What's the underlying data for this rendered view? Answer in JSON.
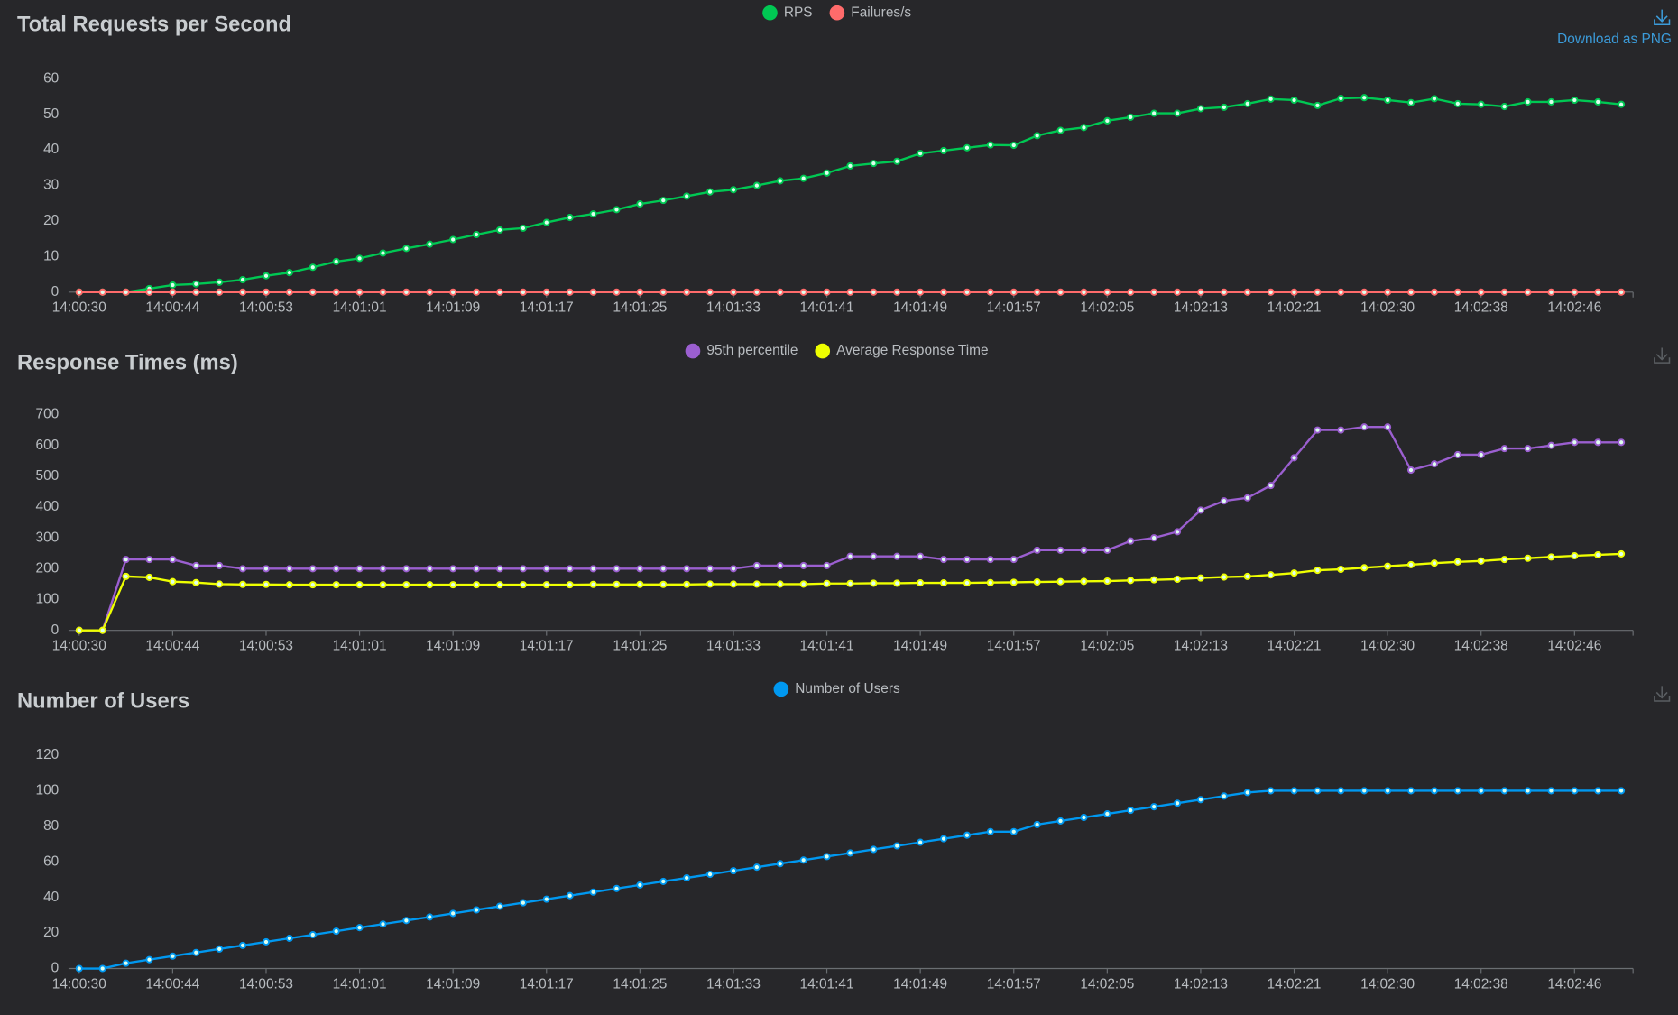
{
  "download_label": "Download as PNG",
  "chart_data": [
    {
      "type": "line",
      "title": "Total Requests per Second",
      "categories": [
        "14:00:30",
        null,
        null,
        null,
        "14:00:44",
        null,
        null,
        null,
        "14:00:53",
        null,
        null,
        null,
        "14:01:01",
        null,
        null,
        null,
        "14:01:09",
        null,
        null,
        null,
        "14:01:17",
        null,
        null,
        null,
        "14:01:25",
        null,
        null,
        null,
        "14:01:33",
        null,
        null,
        null,
        "14:01:41",
        null,
        null,
        null,
        "14:01:49",
        null,
        null,
        null,
        "14:01:57",
        null,
        null,
        null,
        "14:02:05",
        null,
        null,
        null,
        "14:02:13",
        null,
        null,
        null,
        "14:02:21",
        null,
        null,
        null,
        "14:02:30",
        null,
        null,
        null,
        "14:02:38",
        null,
        null,
        null,
        "14:02:46",
        null,
        null
      ],
      "series": [
        {
          "name": "RPS",
          "color": "#00c853",
          "values": [
            0,
            0,
            0,
            1,
            2,
            2.3,
            2.8,
            3.5,
            4.6,
            5.5,
            7,
            8.6,
            9.5,
            11,
            12.3,
            13.5,
            14.8,
            16.2,
            17.5,
            18,
            19.6,
            21,
            22,
            23.2,
            24.8,
            25.8,
            27,
            28.2,
            28.8,
            30,
            31.3,
            32,
            33.5,
            35.5,
            36.2,
            36.8,
            39,
            39.8,
            40.6,
            41.4,
            41.3,
            44,
            45.5,
            46.3,
            48.2,
            49.2,
            50.3,
            50.3,
            51.6,
            52,
            53,
            54.3,
            54,
            52.5,
            54.5,
            54.7,
            54,
            53.3,
            54.4,
            53,
            52.8,
            52.2,
            53.5,
            53.5,
            54,
            53.5,
            52.8
          ]
        },
        {
          "name": "Failures/s",
          "color": "#ff6b6b",
          "values": [
            0,
            0,
            0,
            0,
            0,
            0,
            0,
            0,
            0,
            0,
            0,
            0,
            0,
            0,
            0,
            0,
            0,
            0,
            0,
            0,
            0,
            0,
            0,
            0,
            0,
            0,
            0,
            0,
            0,
            0,
            0,
            0,
            0,
            0,
            0,
            0,
            0,
            0,
            0,
            0,
            0,
            0,
            0,
            0,
            0,
            0,
            0,
            0,
            0,
            0,
            0,
            0,
            0,
            0,
            0,
            0,
            0,
            0,
            0,
            0,
            0,
            0,
            0,
            0,
            0,
            0,
            0
          ]
        }
      ],
      "ylim": [
        0,
        65
      ],
      "yticks": [
        0,
        10,
        20,
        30,
        40,
        50,
        60
      ],
      "legend": "top"
    },
    {
      "type": "line",
      "title": "Response Times (ms)",
      "categories": [
        "14:00:30",
        null,
        null,
        null,
        "14:00:44",
        null,
        null,
        null,
        "14:00:53",
        null,
        null,
        null,
        "14:01:01",
        null,
        null,
        null,
        "14:01:09",
        null,
        null,
        null,
        "14:01:17",
        null,
        null,
        null,
        "14:01:25",
        null,
        null,
        null,
        "14:01:33",
        null,
        null,
        null,
        "14:01:41",
        null,
        null,
        null,
        "14:01:49",
        null,
        null,
        null,
        "14:01:57",
        null,
        null,
        null,
        "14:02:05",
        null,
        null,
        null,
        "14:02:13",
        null,
        null,
        null,
        "14:02:21",
        null,
        null,
        null,
        "14:02:30",
        null,
        null,
        null,
        "14:02:38",
        null,
        null,
        null,
        "14:02:46",
        null,
        null
      ],
      "series": [
        {
          "name": "95th percentile",
          "color": "#9b5fd0",
          "values": [
            0,
            0,
            230,
            230,
            230,
            210,
            210,
            200,
            200,
            200,
            200,
            200,
            200,
            200,
            200,
            200,
            200,
            200,
            200,
            200,
            200,
            200,
            200,
            200,
            200,
            200,
            200,
            200,
            200,
            210,
            210,
            210,
            210,
            240,
            240,
            240,
            240,
            230,
            230,
            230,
            230,
            260,
            260,
            260,
            260,
            290,
            300,
            320,
            390,
            420,
            430,
            470,
            560,
            650,
            650,
            660,
            660,
            520,
            540,
            570,
            570,
            590,
            590,
            600,
            610,
            610,
            610
          ]
        },
        {
          "name": "Average Response Time",
          "color": "#eeff00",
          "values": [
            0,
            0,
            175,
            172,
            158,
            155,
            150,
            149,
            149,
            148,
            148,
            148,
            148,
            148,
            148,
            148,
            148,
            148,
            148,
            148,
            148,
            148,
            149,
            149,
            149,
            149,
            149,
            150,
            150,
            150,
            150,
            150,
            152,
            152,
            153,
            153,
            154,
            154,
            154,
            155,
            156,
            157,
            158,
            159,
            160,
            162,
            164,
            166,
            170,
            173,
            175,
            180,
            186,
            195,
            198,
            203,
            208,
            213,
            218,
            222,
            225,
            230,
            234,
            238,
            242,
            245,
            248
          ]
        }
      ],
      "ylim": [
        0,
        750
      ],
      "yticks": [
        0,
        100,
        200,
        300,
        400,
        500,
        600,
        700
      ],
      "legend": "top"
    },
    {
      "type": "line",
      "title": "Number of Users",
      "categories": [
        "14:00:30",
        null,
        null,
        null,
        "14:00:44",
        null,
        null,
        null,
        "14:00:53",
        null,
        null,
        null,
        "14:01:01",
        null,
        null,
        null,
        "14:01:09",
        null,
        null,
        null,
        "14:01:17",
        null,
        null,
        null,
        "14:01:25",
        null,
        null,
        null,
        "14:01:33",
        null,
        null,
        null,
        "14:01:41",
        null,
        null,
        null,
        "14:01:49",
        null,
        null,
        null,
        "14:01:57",
        null,
        null,
        null,
        "14:02:05",
        null,
        null,
        null,
        "14:02:13",
        null,
        null,
        null,
        "14:02:21",
        null,
        null,
        null,
        "14:02:30",
        null,
        null,
        null,
        "14:02:38",
        null,
        null,
        null,
        "14:02:46",
        null,
        null
      ],
      "series": [
        {
          "name": "Number of Users",
          "color": "#0098f0",
          "values": [
            0,
            0,
            3,
            5,
            7,
            9,
            11,
            13,
            15,
            17,
            19,
            21,
            23,
            25,
            27,
            29,
            31,
            33,
            35,
            37,
            39,
            41,
            43,
            45,
            47,
            49,
            51,
            53,
            55,
            57,
            59,
            61,
            63,
            65,
            67,
            69,
            71,
            73,
            75,
            77,
            77,
            81,
            83,
            85,
            87,
            89,
            91,
            93,
            95,
            97,
            99,
            100,
            100,
            100,
            100,
            100,
            100,
            100,
            100,
            100,
            100,
            100,
            100,
            100,
            100,
            100,
            100
          ]
        }
      ],
      "ylim": [
        0,
        130
      ],
      "yticks": [
        0,
        20,
        40,
        60,
        80,
        100,
        120
      ],
      "legend": "top"
    }
  ]
}
